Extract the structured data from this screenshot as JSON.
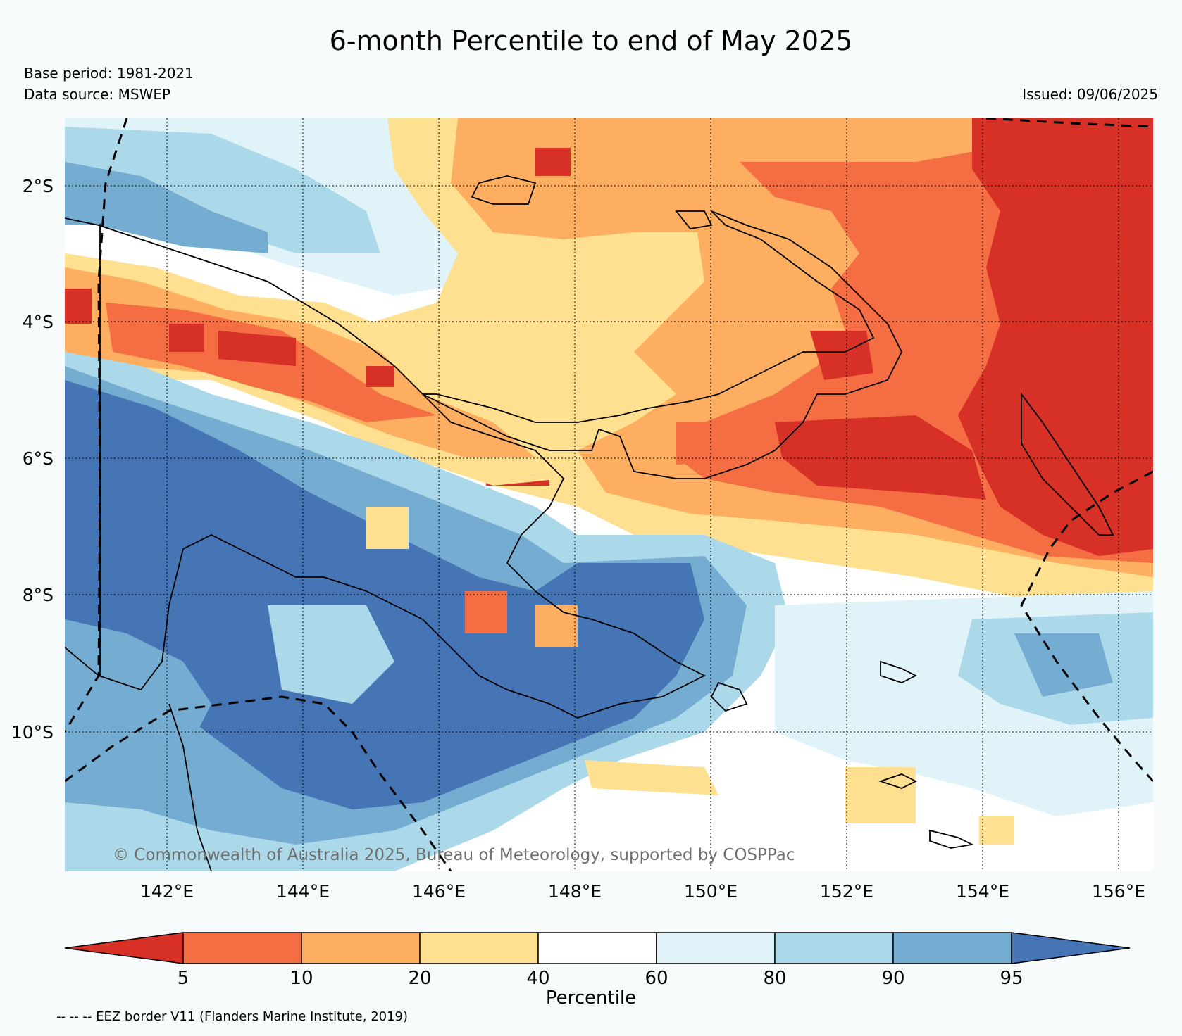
{
  "title": "6-month Percentile to end of May 2025",
  "base_period": "Base period: 1981-2021",
  "data_source": "Data source: MSWEP",
  "issued": "Issued: 09/06/2025",
  "map": {
    "lat_labels": [
      "2°S",
      "4°S",
      "6°S",
      "8°S",
      "10°S"
    ],
    "lon_labels": [
      "142°E",
      "144°E",
      "146°E",
      "148°E",
      "150°E",
      "152°E",
      "154°E",
      "156°E"
    ],
    "copyright": "© Commonwealth of Australia 2025, Bureau of Meteorology, supported by COSPPac",
    "region": "Papua New Guinea"
  },
  "colorbar": {
    "title": "Percentile",
    "ticks": [
      "5",
      "10",
      "20",
      "40",
      "60",
      "80",
      "90",
      "95"
    ],
    "colors": [
      "#d73027",
      "#f46d43",
      "#fdae61",
      "#fee090",
      "#ffffff",
      "#e0f3f8",
      "#abd9e9",
      "#74add1",
      "#4575b4"
    ]
  },
  "eez_note": "-- -- -- EEZ border V11 (Flanders Marine Institute, 2019)"
}
